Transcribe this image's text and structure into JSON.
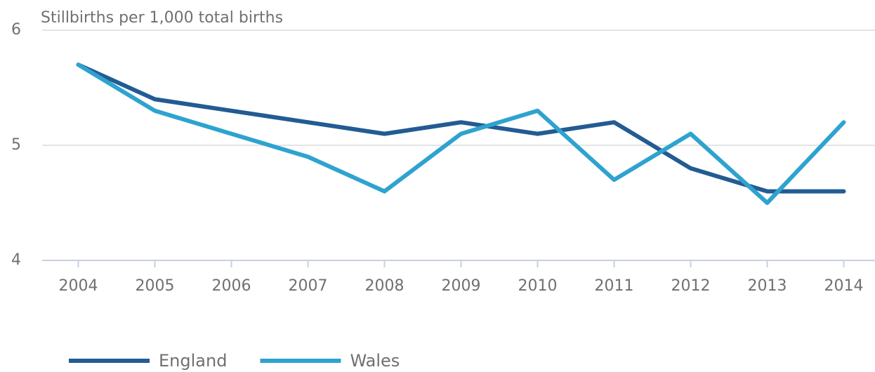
{
  "chart_data": {
    "type": "line",
    "title": "Stillbirths per 1,000 total births",
    "categories": [
      "2004",
      "2005",
      "2006",
      "2007",
      "2008",
      "2009",
      "2010",
      "2011",
      "2012",
      "2013",
      "2014"
    ],
    "series": [
      {
        "name": "England",
        "color": "#235b93",
        "values": [
          5.7,
          5.4,
          5.3,
          5.2,
          5.1,
          5.2,
          5.1,
          5.2,
          4.8,
          4.6,
          4.6
        ]
      },
      {
        "name": "Wales",
        "color": "#2ea3cf",
        "values": [
          5.7,
          5.3,
          5.1,
          4.9,
          4.6,
          5.1,
          5.3,
          4.7,
          5.1,
          4.5,
          5.2
        ]
      }
    ],
    "ylim": [
      4,
      6
    ],
    "yticks": [
      4,
      5,
      6
    ],
    "grid": true,
    "legend": "bottom-left"
  }
}
